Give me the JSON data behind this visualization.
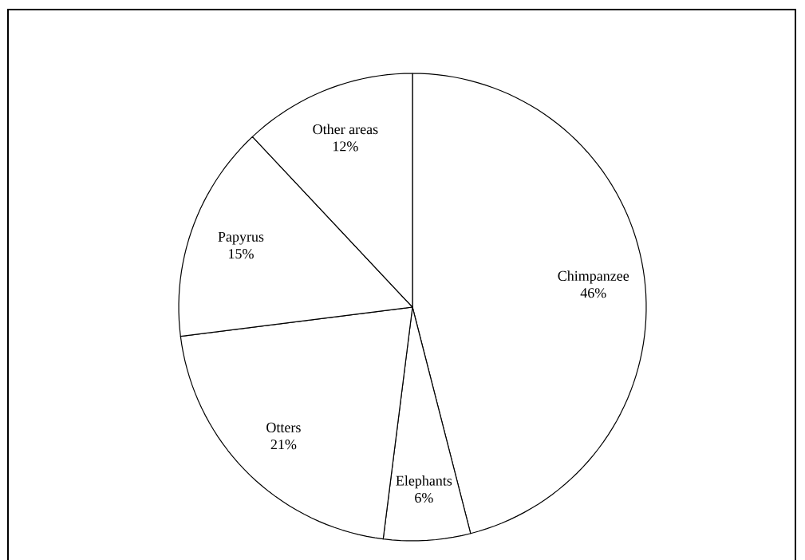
{
  "chart_data": {
    "type": "pie",
    "categories": [
      "Chimpanzee",
      "Elephants",
      "Otters",
      "Papyrus",
      "Other areas"
    ],
    "values": [
      46,
      6,
      21,
      15,
      12
    ],
    "value_labels": [
      "46%",
      "6%",
      "21%",
      "15%",
      "12%"
    ],
    "colors": [
      "#ffffff",
      "#ffffff",
      "#ffffff",
      "#ffffff",
      "#ffffff"
    ]
  }
}
